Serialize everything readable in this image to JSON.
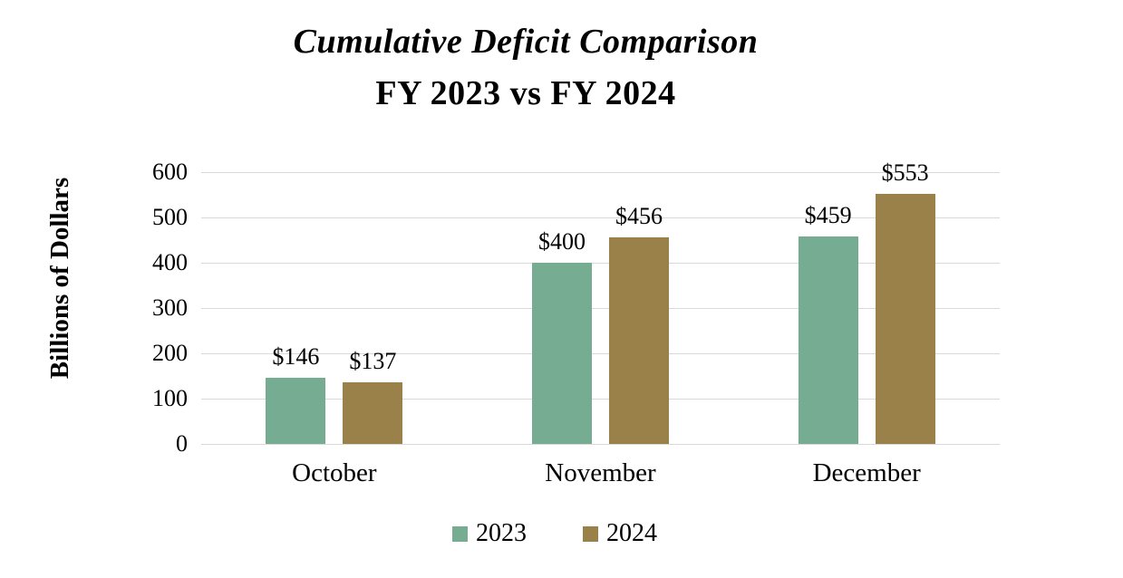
{
  "chart_data": {
    "type": "bar",
    "title": "Cumulative Deficit Comparison",
    "subtitle": "FY 2023 vs FY 2024",
    "ylabel": "Billions of Dollars",
    "xlabel": "",
    "categories": [
      "October",
      "November",
      "December"
    ],
    "series": [
      {
        "name": "2023",
        "color": "#76ad92",
        "values": [
          146,
          400,
          459
        ],
        "labels": [
          "$146",
          "$400",
          "$459"
        ]
      },
      {
        "name": "2024",
        "color": "#998149",
        "values": [
          137,
          456,
          553
        ],
        "labels": [
          "$137",
          "$456",
          "$553"
        ]
      }
    ],
    "ylim": [
      0,
      600
    ],
    "yticks": [
      0,
      100,
      200,
      300,
      400,
      500,
      600
    ],
    "grid": true,
    "gridline_color": "#d9d9d9",
    "legend_position": "bottom"
  }
}
